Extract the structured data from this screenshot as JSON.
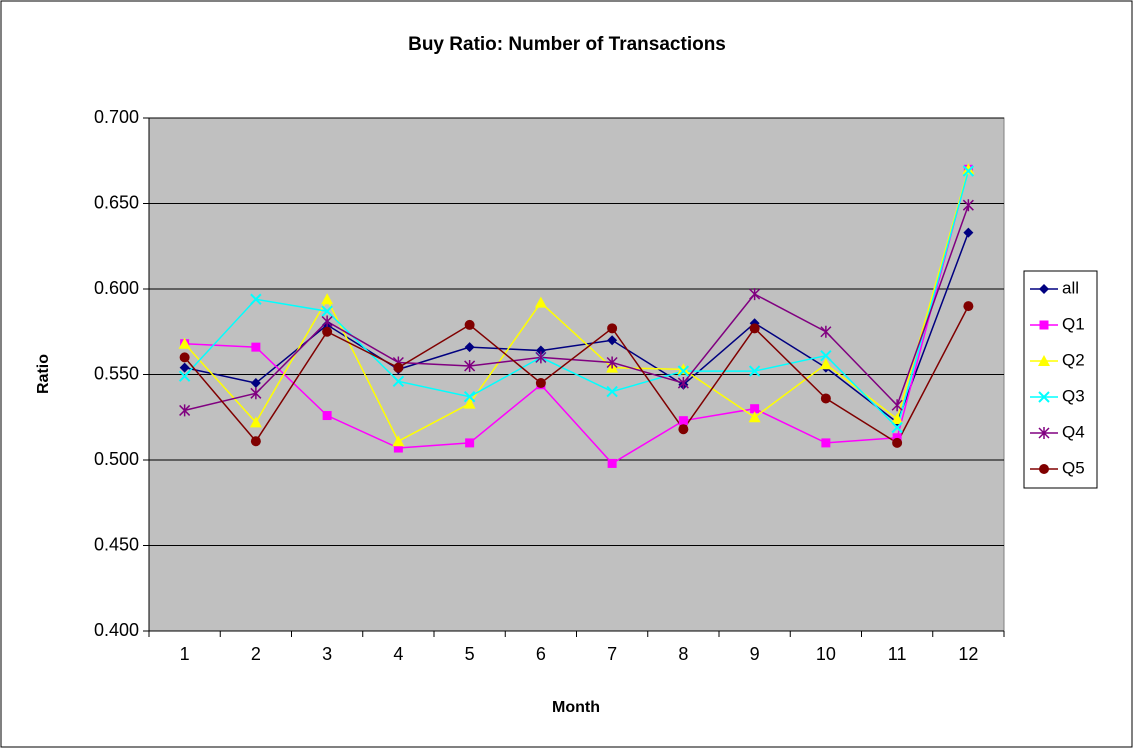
{
  "chart_data": {
    "type": "line",
    "title": "Buy Ratio: Number of Transactions",
    "x_label": "Month",
    "y_label": "Ratio",
    "categories": [
      "1",
      "2",
      "3",
      "4",
      "5",
      "6",
      "7",
      "8",
      "9",
      "10",
      "11",
      "12"
    ],
    "series": [
      {
        "name": "all",
        "color": "#000080",
        "marker": "diamond",
        "values": [
          0.554,
          0.545,
          0.579,
          0.553,
          0.566,
          0.564,
          0.57,
          0.544,
          0.58,
          0.554,
          0.522,
          0.633
        ]
      },
      {
        "name": "Q1",
        "color": "#ff00ff",
        "marker": "square",
        "values": [
          0.568,
          0.566,
          0.526,
          0.507,
          0.51,
          0.544,
          0.498,
          0.523,
          0.53,
          0.51,
          0.513,
          0.67
        ]
      },
      {
        "name": "Q2",
        "color": "#ffff00",
        "marker": "triangle",
        "values": [
          0.568,
          0.522,
          0.594,
          0.511,
          0.533,
          0.592,
          0.554,
          0.553,
          0.525,
          0.556,
          0.524,
          0.67
        ]
      },
      {
        "name": "Q3",
        "color": "#00ffff",
        "marker": "x",
        "values": [
          0.549,
          0.594,
          0.587,
          0.546,
          0.537,
          0.56,
          0.54,
          0.552,
          0.552,
          0.561,
          0.519,
          0.669
        ]
      },
      {
        "name": "Q4",
        "color": "#800080",
        "marker": "asterisk",
        "values": [
          0.529,
          0.539,
          0.581,
          0.557,
          0.555,
          0.56,
          0.557,
          0.545,
          0.597,
          0.575,
          0.532,
          0.649
        ]
      },
      {
        "name": "Q5",
        "color": "#800000",
        "marker": "circle",
        "values": [
          0.56,
          0.511,
          0.575,
          0.554,
          0.579,
          0.545,
          0.577,
          0.518,
          0.577,
          0.536,
          0.51,
          0.59
        ]
      }
    ],
    "ylim": [
      0.4,
      0.7
    ],
    "yticks": [
      {
        "value": 0.4,
        "label": "0.400"
      },
      {
        "value": 0.45,
        "label": "0.450"
      },
      {
        "value": 0.5,
        "label": "0.500"
      },
      {
        "value": 0.55,
        "label": "0.550"
      },
      {
        "value": 0.6,
        "label": "0.600"
      },
      {
        "value": 0.65,
        "label": "0.650"
      },
      {
        "value": 0.7,
        "label": "0.700"
      }
    ],
    "grid": true,
    "plot_background": "#c0c0c0",
    "legend": "right"
  }
}
